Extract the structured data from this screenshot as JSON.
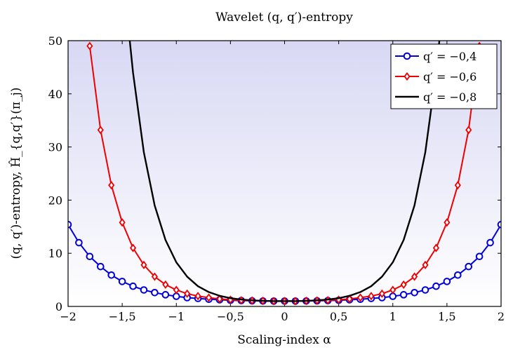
{
  "chart_data": {
    "type": "line",
    "title": "Wavelet (q, q′)-entropy",
    "xlabel": "Scaling-index α",
    "ylabel": "(q, q′)-entropy, Ĥ_{q,q′}(π_j)",
    "xlim": [
      -2,
      2
    ],
    "ylim": [
      0,
      50
    ],
    "xticks": [
      -2,
      -1.5,
      -1,
      -0.5,
      0,
      0.5,
      1,
      1.5,
      2
    ],
    "xtick_labels": [
      "−2",
      "−1,5",
      "−1",
      "−0,5",
      "0",
      "0,5",
      "1",
      "1,5",
      "2"
    ],
    "yticks": [
      0,
      10,
      20,
      30,
      40,
      50
    ],
    "ytick_labels": [
      "0",
      "10",
      "20",
      "30",
      "40",
      "50"
    ],
    "legend_position": "top-right",
    "colors": {
      "bg_top": "#d8d8f4",
      "bg_bottom": "#ffffff",
      "series_blue": "#0000dd",
      "series_red": "#ee0000",
      "series_black": "#000000"
    },
    "series": [
      {
        "name": "q′ = −0,4",
        "color": "#0000dd",
        "marker": "circle",
        "x": [
          -2,
          -1.9,
          -1.8,
          -1.7,
          -1.6,
          -1.5,
          -1.4,
          -1.3,
          -1.2,
          -1.1,
          -1,
          -0.9,
          -0.8,
          -0.7,
          -0.6,
          -0.5,
          -0.4,
          -0.3,
          -0.2,
          -0.1,
          0,
          0.1,
          0.2,
          0.3,
          0.4,
          0.5,
          0.6,
          0.7,
          0.8,
          0.9,
          1,
          1.1,
          1.2,
          1.3,
          1.4,
          1.5,
          1.6,
          1.7,
          1.8,
          1.9,
          2
        ],
        "y": [
          15.4,
          12.0,
          9.4,
          7.5,
          5.9,
          4.7,
          3.8,
          3.1,
          2.6,
          2.2,
          1.9,
          1.65,
          1.5,
          1.35,
          1.25,
          1.15,
          1.1,
          1.05,
          1.02,
          1.0,
          1.0,
          1.0,
          1.02,
          1.05,
          1.1,
          1.15,
          1.25,
          1.35,
          1.5,
          1.65,
          1.9,
          2.2,
          2.6,
          3.1,
          3.8,
          4.7,
          5.9,
          7.5,
          9.4,
          12.0,
          15.4
        ]
      },
      {
        "name": "q′ = −0,6",
        "color": "#ee0000",
        "marker": "diamond",
        "x": [
          -1.8,
          -1.7,
          -1.6,
          -1.5,
          -1.4,
          -1.3,
          -1.2,
          -1.1,
          -1,
          -0.9,
          -0.8,
          -0.7,
          -0.6,
          -0.5,
          -0.4,
          -0.3,
          -0.2,
          -0.1,
          0,
          0.1,
          0.2,
          0.3,
          0.4,
          0.5,
          0.6,
          0.7,
          0.8,
          0.9,
          1,
          1.1,
          1.2,
          1.3,
          1.4,
          1.5,
          1.6,
          1.7,
          1.8
        ],
        "y": [
          49.0,
          33.2,
          22.8,
          15.8,
          11.0,
          7.8,
          5.6,
          4.1,
          3.1,
          2.4,
          1.95,
          1.65,
          1.4,
          1.25,
          1.15,
          1.1,
          1.05,
          1.0,
          1.0,
          1.0,
          1.05,
          1.1,
          1.15,
          1.25,
          1.4,
          1.65,
          1.95,
          2.4,
          3.1,
          4.1,
          5.6,
          7.8,
          11.0,
          15.8,
          22.8,
          33.2,
          49.0
        ]
      },
      {
        "name": "q′ = −0,8",
        "color": "#000000",
        "marker": "none",
        "x": [
          -1.43,
          -1.4,
          -1.3,
          -1.2,
          -1.1,
          -1,
          -0.9,
          -0.8,
          -0.7,
          -0.6,
          -0.5,
          -0.4,
          -0.3,
          -0.2,
          -0.1,
          0,
          0.1,
          0.2,
          0.3,
          0.4,
          0.5,
          0.6,
          0.7,
          0.8,
          0.9,
          1,
          1.1,
          1.2,
          1.3,
          1.4,
          1.43
        ],
        "y": [
          50,
          44.0,
          29.0,
          19.0,
          12.5,
          8.3,
          5.6,
          3.8,
          2.7,
          2.0,
          1.55,
          1.3,
          1.15,
          1.05,
          1.0,
          1.0,
          1.0,
          1.05,
          1.15,
          1.3,
          1.55,
          2.0,
          2.7,
          3.8,
          5.6,
          8.3,
          12.5,
          19.0,
          29.0,
          44.0,
          50
        ]
      }
    ]
  }
}
